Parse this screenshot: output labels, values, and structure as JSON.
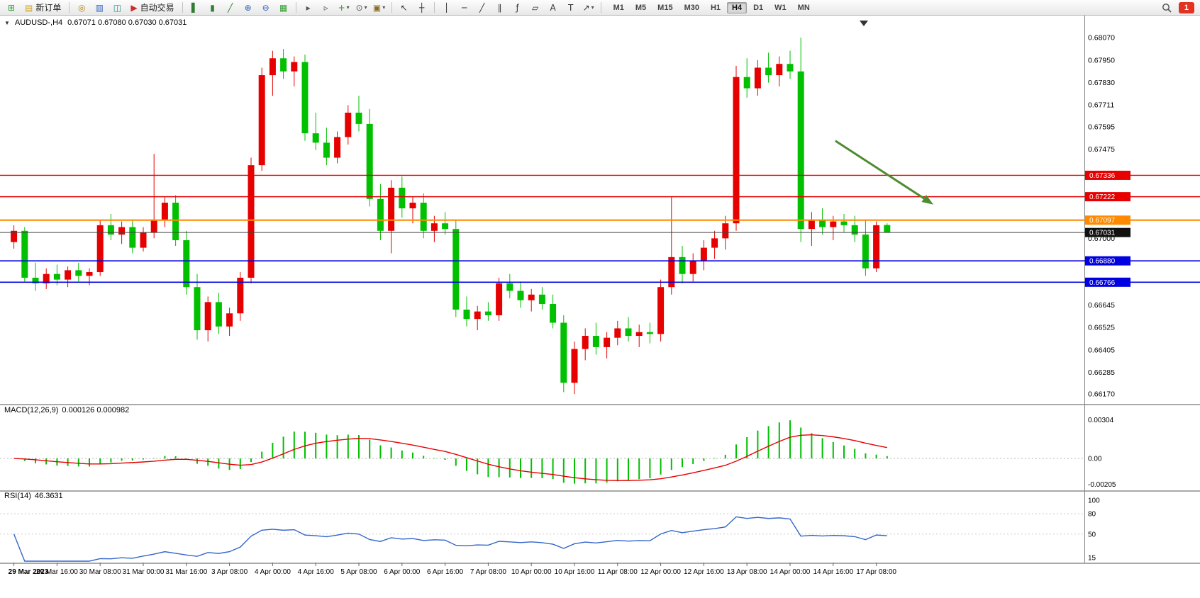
{
  "toolbar": {
    "items": [
      {
        "type": "icon",
        "name": "new-chart-icon",
        "glyph": "⊞",
        "color": "#2e9e2e"
      },
      {
        "type": "labeled-button",
        "name": "new-order-button",
        "label": "新订单",
        "glyph": "▤",
        "color": "#d7a21a"
      },
      {
        "type": "separator"
      },
      {
        "type": "icon",
        "name": "mql-wizard-icon",
        "glyph": "◎",
        "color": "#b8860b"
      },
      {
        "type": "icon",
        "name": "market-watch-icon",
        "glyph": "▥",
        "color": "#2f5fbf"
      },
      {
        "type": "icon",
        "name": "navigator-icon",
        "glyph": "◫",
        "color": "#1f8f8f"
      },
      {
        "type": "labeled-button",
        "name": "autotrade-button",
        "label": "自动交易",
        "glyph": "▶",
        "color": "#cf2b2b"
      },
      {
        "type": "separator"
      },
      {
        "type": "icon",
        "name": "bar-chart-type-icon",
        "glyph": "▌",
        "color": "#2e7d32"
      },
      {
        "type": "icon",
        "name": "candlestick-type-icon",
        "glyph": "▮",
        "color": "#2e7d32"
      },
      {
        "type": "icon",
        "name": "line-chart-type-icon",
        "glyph": "╱",
        "color": "#2e7d32"
      },
      {
        "type": "icon",
        "name": "zoom-in-icon",
        "glyph": "⊕",
        "color": "#2f5fbf"
      },
      {
        "type": "icon",
        "name": "zoom-out-icon",
        "glyph": "⊖",
        "color": "#2f5fbf"
      },
      {
        "type": "icon",
        "name": "tile-windows-icon",
        "glyph": "▦",
        "color": "#2e9e2e"
      },
      {
        "type": "separator"
      },
      {
        "type": "icon",
        "name": "auto-scroll-icon",
        "glyph": "▸",
        "color": "#555555"
      },
      {
        "type": "icon",
        "name": "chart-shift-icon",
        "glyph": "▹",
        "color": "#555555"
      },
      {
        "type": "icon",
        "name": "add-indicator-icon",
        "glyph": "+",
        "color": "#2e9e2e",
        "caret": true
      },
      {
        "type": "icon",
        "name": "periods-icon",
        "glyph": "⊙",
        "color": "#555555",
        "caret": true
      },
      {
        "type": "icon",
        "name": "templates-icon",
        "glyph": "▣",
        "color": "#8a6d1d",
        "caret": true
      },
      {
        "type": "separator"
      },
      {
        "type": "icon",
        "name": "cursor-icon",
        "glyph": "↖",
        "color": "#333333"
      },
      {
        "type": "icon",
        "name": "crosshair-icon",
        "glyph": "┼",
        "color": "#333333"
      },
      {
        "type": "separator"
      },
      {
        "type": "icon",
        "name": "vertical-line-icon",
        "glyph": "│",
        "color": "#333333"
      },
      {
        "type": "icon",
        "name": "horizontal-line-icon",
        "glyph": "─",
        "color": "#333333"
      },
      {
        "type": "icon",
        "name": "trendline-icon",
        "glyph": "╱",
        "color": "#333333"
      },
      {
        "type": "icon",
        "name": "equidistant-channel-icon",
        "glyph": "∥",
        "color": "#333333"
      },
      {
        "type": "icon",
        "name": "fibonacci-icon",
        "glyph": "ƒ",
        "color": "#333333"
      },
      {
        "type": "icon",
        "name": "shapes-icon",
        "glyph": "▱",
        "color": "#333333"
      },
      {
        "type": "icon",
        "name": "text-icon",
        "glyph": "A",
        "color": "#333333"
      },
      {
        "type": "icon",
        "name": "text-label-icon",
        "glyph": "T",
        "color": "#333333"
      },
      {
        "type": "icon",
        "name": "arrows-icon",
        "glyph": "↗",
        "color": "#333333",
        "caret": true
      },
      {
        "type": "separator"
      }
    ],
    "timeframes": [
      "M1",
      "M5",
      "M15",
      "M30",
      "H1",
      "H4",
      "D1",
      "W1",
      "MN"
    ],
    "active_timeframe": "H4",
    "notification_count": "1"
  },
  "chart_header": {
    "collapse_glyph": "▼",
    "symbol_period": "AUDUSD-,H4",
    "ohlc": "0.67071 0.67080 0.67030 0.67031"
  },
  "chart_data": {
    "type": "candlestick",
    "symbol": "AUDUSD",
    "timeframe": "H4",
    "colors": {
      "up": "#e60000",
      "down": "#00c000",
      "background": "#ffffff"
    },
    "price_axis": {
      "min": 0.66125,
      "max": 0.68165,
      "ticks": [
        {
          "label": "0.68070",
          "value": 0.6807
        },
        {
          "label": "0.67950",
          "value": 0.6795
        },
        {
          "label": "0.67830",
          "value": 0.6783
        },
        {
          "label": "0.67711",
          "value": 0.67711
        },
        {
          "label": "0.67595",
          "value": 0.67595
        },
        {
          "label": "0.67475",
          "value": 0.67475
        },
        {
          "label": "0.67000",
          "value": 0.67
        },
        {
          "label": "0.66645",
          "value": 0.66645
        },
        {
          "label": "0.66525",
          "value": 0.66525
        },
        {
          "label": "0.66405",
          "value": 0.66405
        },
        {
          "label": "0.66285",
          "value": 0.66285
        },
        {
          "label": "0.66170",
          "value": 0.6617
        }
      ]
    },
    "candles": [
      [
        0.6698,
        0.6707,
        0.66945,
        0.6704
      ],
      [
        0.6704,
        0.6706,
        0.6677,
        0.6679
      ],
      [
        0.6679,
        0.6687,
        0.6672,
        0.6676
      ],
      [
        0.6676,
        0.6684,
        0.6673,
        0.6681
      ],
      [
        0.6681,
        0.6686,
        0.6675,
        0.6678
      ],
      [
        0.6678,
        0.6685,
        0.6674,
        0.6683
      ],
      [
        0.6683,
        0.6687,
        0.6677,
        0.668
      ],
      [
        0.668,
        0.6684,
        0.6675,
        0.6682
      ],
      [
        0.6682,
        0.671,
        0.668,
        0.6707
      ],
      [
        0.6707,
        0.6713,
        0.6699,
        0.6702
      ],
      [
        0.6702,
        0.6709,
        0.6697,
        0.6706
      ],
      [
        0.6706,
        0.671,
        0.6692,
        0.6695
      ],
      [
        0.6695,
        0.6706,
        0.6693,
        0.6703
      ],
      [
        0.6703,
        0.6745,
        0.67,
        0.671
      ],
      [
        0.671,
        0.6722,
        0.6706,
        0.6719
      ],
      [
        0.6719,
        0.6723,
        0.6696,
        0.6699
      ],
      [
        0.6699,
        0.6704,
        0.667,
        0.6674
      ],
      [
        0.6674,
        0.6681,
        0.6646,
        0.6651
      ],
      [
        0.6651,
        0.6669,
        0.6645,
        0.6666
      ],
      [
        0.6666,
        0.6671,
        0.6649,
        0.6653
      ],
      [
        0.6653,
        0.6663,
        0.6648,
        0.666
      ],
      [
        0.666,
        0.6682,
        0.6656,
        0.6679
      ],
      [
        0.6679,
        0.6743,
        0.6676,
        0.6739
      ],
      [
        0.6739,
        0.6791,
        0.6736,
        0.6787
      ],
      [
        0.6787,
        0.68,
        0.6776,
        0.6796
      ],
      [
        0.6796,
        0.6801,
        0.6785,
        0.6789
      ],
      [
        0.6789,
        0.6797,
        0.6781,
        0.6794
      ],
      [
        0.6794,
        0.6798,
        0.6752,
        0.6756
      ],
      [
        0.6756,
        0.6767,
        0.6747,
        0.6751
      ],
      [
        0.6751,
        0.6759,
        0.6739,
        0.6743
      ],
      [
        0.6743,
        0.6757,
        0.674,
        0.6754
      ],
      [
        0.6754,
        0.6771,
        0.675,
        0.6767
      ],
      [
        0.6767,
        0.6776,
        0.6757,
        0.6761
      ],
      [
        0.6761,
        0.6769,
        0.6717,
        0.6721
      ],
      [
        0.6721,
        0.6729,
        0.6699,
        0.6704
      ],
      [
        0.6704,
        0.6731,
        0.6692,
        0.6727
      ],
      [
        0.6727,
        0.6733,
        0.6711,
        0.6716
      ],
      [
        0.6716,
        0.6722,
        0.6708,
        0.6719
      ],
      [
        0.6719,
        0.6724,
        0.67,
        0.6704
      ],
      [
        0.6704,
        0.6712,
        0.6698,
        0.6708
      ],
      [
        0.6708,
        0.6714,
        0.6702,
        0.6705
      ],
      [
        0.6705,
        0.671,
        0.6658,
        0.6662
      ],
      [
        0.6662,
        0.6669,
        0.6653,
        0.6657
      ],
      [
        0.6657,
        0.6664,
        0.6651,
        0.6661
      ],
      [
        0.6661,
        0.6666,
        0.6656,
        0.6659
      ],
      [
        0.6659,
        0.6679,
        0.6656,
        0.6676
      ],
      [
        0.6676,
        0.6681,
        0.6668,
        0.6672
      ],
      [
        0.6672,
        0.6677,
        0.6663,
        0.6667
      ],
      [
        0.6667,
        0.6673,
        0.6661,
        0.667
      ],
      [
        0.667,
        0.6674,
        0.6662,
        0.6665
      ],
      [
        0.6665,
        0.667,
        0.6652,
        0.6655
      ],
      [
        0.6655,
        0.6659,
        0.6618,
        0.6623
      ],
      [
        0.6623,
        0.6645,
        0.6617,
        0.6641
      ],
      [
        0.6641,
        0.6652,
        0.6635,
        0.6648
      ],
      [
        0.6648,
        0.6655,
        0.6638,
        0.6642
      ],
      [
        0.6642,
        0.665,
        0.6636,
        0.6647
      ],
      [
        0.6647,
        0.6656,
        0.6643,
        0.6652
      ],
      [
        0.6652,
        0.6658,
        0.6645,
        0.6648
      ],
      [
        0.6648,
        0.6654,
        0.6642,
        0.665
      ],
      [
        0.665,
        0.6655,
        0.6644,
        0.6649
      ],
      [
        0.6649,
        0.6678,
        0.6645,
        0.6674
      ],
      [
        0.6674,
        0.6722,
        0.667,
        0.669
      ],
      [
        0.669,
        0.6696,
        0.6676,
        0.6681
      ],
      [
        0.6681,
        0.6692,
        0.6677,
        0.6688
      ],
      [
        0.6688,
        0.6699,
        0.6683,
        0.6695
      ],
      [
        0.6695,
        0.6704,
        0.6689,
        0.67
      ],
      [
        0.67,
        0.6712,
        0.6694,
        0.6708
      ],
      [
        0.6708,
        0.6792,
        0.6704,
        0.6786
      ],
      [
        0.6786,
        0.6796,
        0.6775,
        0.678
      ],
      [
        0.678,
        0.6795,
        0.6776,
        0.6791
      ],
      [
        0.6791,
        0.6799,
        0.6783,
        0.6787
      ],
      [
        0.6787,
        0.6797,
        0.6781,
        0.6793
      ],
      [
        0.6793,
        0.68,
        0.6785,
        0.6789
      ],
      [
        0.6789,
        0.6807,
        0.6698,
        0.6705
      ],
      [
        0.6705,
        0.6714,
        0.6696,
        0.671
      ],
      [
        0.671,
        0.6716,
        0.6702,
        0.6706
      ],
      [
        0.6706,
        0.6712,
        0.6699,
        0.6709
      ],
      [
        0.6709,
        0.6713,
        0.6703,
        0.6707
      ],
      [
        0.6707,
        0.6712,
        0.6698,
        0.6702
      ],
      [
        0.6702,
        0.671,
        0.668,
        0.6684
      ],
      [
        0.6684,
        0.6709,
        0.6682,
        0.6707
      ],
      [
        0.67071,
        0.6708,
        0.6703,
        0.67031
      ]
    ],
    "x_labels": [
      "29 Mar 2023",
      "29 Mar 16:00",
      "30 Mar 08:00",
      "31 Mar 00:00",
      "31 Mar 16:00",
      "3 Apr 08:00",
      "4 Apr 00:00",
      "4 Apr 16:00",
      "5 Apr 08:00",
      "6 Apr 00:00",
      "6 Apr 16:00",
      "7 Apr 08:00",
      "10 Apr 00:00",
      "10 Apr 16:00",
      "11 Apr 08:00",
      "12 Apr 00:00",
      "12 Apr 16:00",
      "13 Apr 08:00",
      "14 Apr 00:00",
      "14 Apr 16:00",
      "17 Apr 08:00"
    ],
    "x_label_step": 4,
    "levels": [
      {
        "price": 0.67336,
        "label": "0.67336",
        "color": "#e60000",
        "lw": 1.4
      },
      {
        "price": 0.67222,
        "label": "0.67222",
        "color": "#e60000",
        "lw": 1.4
      },
      {
        "price": 0.67097,
        "label": "0.67097",
        "color": "#ff8a00",
        "lw": 2.2
      },
      {
        "price": 0.6688,
        "label": "0.66880",
        "color": "#0000e0",
        "lw": 1.6
      },
      {
        "price": 0.66766,
        "label": "0.66766",
        "color": "#0000e0",
        "lw": 1.6
      }
    ],
    "bid": {
      "price": 0.67031,
      "label": "0.67031",
      "line_color": "#444444",
      "tag_color": "#111111"
    },
    "trend_arrow": {
      "color": "#4e8c2f",
      "width": 3,
      "from": {
        "bar": 76.2,
        "price": 0.6752
      },
      "to": {
        "bar": 85.3,
        "price": 0.6718
      }
    },
    "macd": {
      "name": "MACD(12,26,9)",
      "values_text": "0.000126 0.000982",
      "fast": 12,
      "slow": 26,
      "signal": 9,
      "bar_color": "#00c000",
      "signal_color": "#e60000",
      "scale_max": 0.0033,
      "scale_min": -0.0024,
      "ticks": [
        {
          "label": "0.00304",
          "value": 0.00304
        },
        {
          "label": "0.00",
          "value": 0
        },
        {
          "label": "-0.00205",
          "value": -0.00205
        }
      ]
    },
    "rsi": {
      "name": "RSI(14)",
      "values_text": "46.3631",
      "period": 14,
      "line_color": "#3366cc",
      "scale_max": 100,
      "scale_min": 10,
      "levels": [
        80,
        50
      ],
      "ticks": [
        {
          "label": "100",
          "value": 100
        },
        {
          "label": "80",
          "value": 80
        },
        {
          "label": "50",
          "value": 50
        },
        {
          "label": "15",
          "value": 15
        }
      ]
    }
  }
}
